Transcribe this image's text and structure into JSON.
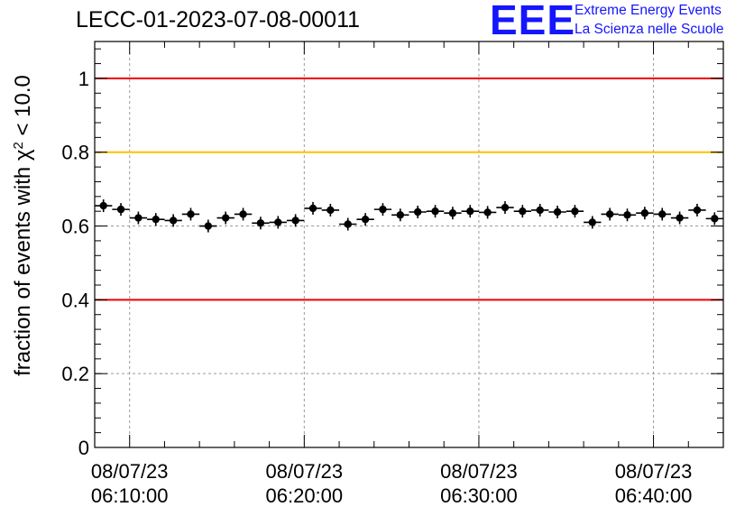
{
  "title": "LECC-01-2023-07-08-00011",
  "logo": {
    "mark": "EEE",
    "line1": "Extreme Energy Events",
    "line2": "La Scienza nelle Scuole",
    "color": "#1515ff"
  },
  "chart_data": {
    "type": "scatter",
    "title": "LECC-01-2023-07-08-00011",
    "ylabel": "fraction of events with χ² < 10.0",
    "ylabel_parts": {
      "pre": "fraction of events with ",
      "sym": "χ",
      "sup": "2",
      "post": " < 10.0"
    },
    "xlabel": "",
    "ylim": [
      0,
      1.1
    ],
    "x_unit": "minutes past 06:00:00 on 08/07/23",
    "xlim": [
      8.0,
      44.0
    ],
    "yticks": [
      {
        "value": 0,
        "label": "0"
      },
      {
        "value": 0.2,
        "label": "0.2"
      },
      {
        "value": 0.4,
        "label": "0.4"
      },
      {
        "value": 0.6,
        "label": "0.6"
      },
      {
        "value": 0.8,
        "label": "0.8"
      },
      {
        "value": 1.0,
        "label": "1"
      }
    ],
    "xticks": [
      {
        "value": 10,
        "date": "08/07/23",
        "time": "06:10:00"
      },
      {
        "value": 20,
        "date": "08/07/23",
        "time": "06:20:00"
      },
      {
        "value": 30,
        "date": "08/07/23",
        "time": "06:30:00"
      },
      {
        "value": 40,
        "date": "08/07/23",
        "time": "06:40:00"
      }
    ],
    "grid": true,
    "reference_lines": [
      {
        "y": 1.0,
        "color": "#ee0000"
      },
      {
        "y": 0.8,
        "color": "#ffc000"
      },
      {
        "y": 0.4,
        "color": "#ee0000"
      }
    ],
    "series": [
      {
        "color": "#000000",
        "x_halfwidth": 0.5,
        "points": [
          {
            "x": 8.5,
            "y": 0.655
          },
          {
            "x": 9.5,
            "y": 0.645
          },
          {
            "x": 10.5,
            "y": 0.622
          },
          {
            "x": 11.5,
            "y": 0.618
          },
          {
            "x": 12.5,
            "y": 0.615
          },
          {
            "x": 13.5,
            "y": 0.632
          },
          {
            "x": 14.5,
            "y": 0.6
          },
          {
            "x": 15.5,
            "y": 0.622
          },
          {
            "x": 16.5,
            "y": 0.632
          },
          {
            "x": 17.5,
            "y": 0.608
          },
          {
            "x": 18.5,
            "y": 0.61
          },
          {
            "x": 19.5,
            "y": 0.615
          },
          {
            "x": 20.5,
            "y": 0.648
          },
          {
            "x": 21.5,
            "y": 0.643
          },
          {
            "x": 22.5,
            "y": 0.605
          },
          {
            "x": 23.5,
            "y": 0.618
          },
          {
            "x": 24.5,
            "y": 0.645
          },
          {
            "x": 25.5,
            "y": 0.63
          },
          {
            "x": 26.5,
            "y": 0.638
          },
          {
            "x": 27.5,
            "y": 0.64
          },
          {
            "x": 28.5,
            "y": 0.635
          },
          {
            "x": 29.5,
            "y": 0.64
          },
          {
            "x": 30.5,
            "y": 0.637
          },
          {
            "x": 31.5,
            "y": 0.65
          },
          {
            "x": 32.5,
            "y": 0.64
          },
          {
            "x": 33.5,
            "y": 0.643
          },
          {
            "x": 34.5,
            "y": 0.638
          },
          {
            "x": 35.5,
            "y": 0.64
          },
          {
            "x": 36.5,
            "y": 0.61
          },
          {
            "x": 37.5,
            "y": 0.632
          },
          {
            "x": 38.5,
            "y": 0.63
          },
          {
            "x": 39.5,
            "y": 0.635
          },
          {
            "x": 40.5,
            "y": 0.632
          },
          {
            "x": 41.5,
            "y": 0.622
          },
          {
            "x": 42.5,
            "y": 0.643
          },
          {
            "x": 43.5,
            "y": 0.62
          }
        ]
      }
    ]
  }
}
